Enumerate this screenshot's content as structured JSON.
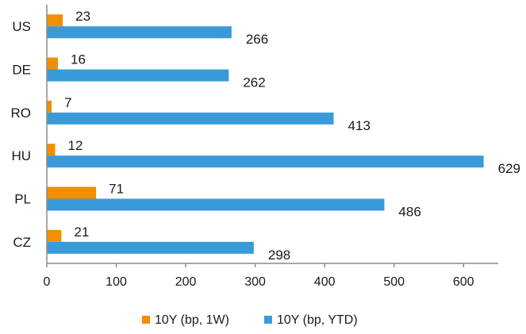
{
  "chart_data": {
    "type": "bar",
    "orientation": "horizontal",
    "categories": [
      "US",
      "DE",
      "RO",
      "HU",
      "PL",
      "CZ"
    ],
    "series": [
      {
        "name": "10Y (bp, 1W)",
        "values": [
          23,
          16,
          7,
          12,
          71,
          21
        ],
        "color": "#f28e00"
      },
      {
        "name": "10Y (bp, YTD)",
        "values": [
          266,
          262,
          413,
          629,
          486,
          298
        ],
        "color": "#3a9ad9"
      }
    ],
    "xlim": [
      0,
      650
    ],
    "xticks": [
      0,
      100,
      200,
      300,
      400,
      500,
      600
    ],
    "grid": false,
    "legend_position": "bottom"
  }
}
